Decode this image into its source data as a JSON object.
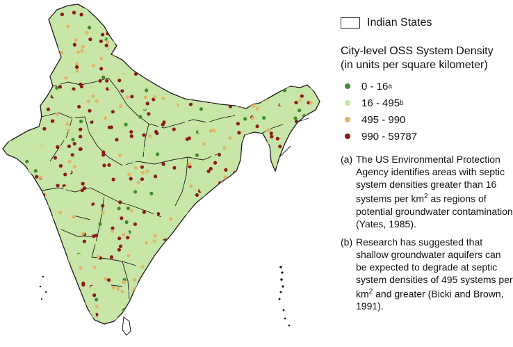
{
  "legend": {
    "states_label": "Indian States",
    "title_line1": "City-level OSS System Density",
    "title_line2": "(in units per square kilometer)",
    "categories": [
      {
        "label": "0 - 16",
        "sup": "a",
        "color": "#3d8a2a"
      },
      {
        "label": "16 - 495",
        "sup": "b",
        "color": "#c6e6a0"
      },
      {
        "label": "495 - 990",
        "sup": "",
        "color": "#e0b56a"
      },
      {
        "label": "990 - 59787",
        "sup": "",
        "color": "#8b1a1a"
      }
    ]
  },
  "notes": [
    {
      "tag": "(a)",
      "text_before": "The US Environmental Protection Agency identifies areas with septic system densities greater than 16 systems per km",
      "sup": "2",
      "text_after": " as regions of potential groundwater contamination (Yates, 1985)."
    },
    {
      "tag": "(b)",
      "text_before": "Research has suggested that shallow groundwater aquifers can be expected to degrade at septic system densities of 495 systems per km",
      "sup": "2",
      "text_after": " and greater (Bicki and Brown, 1991)."
    }
  ],
  "map": {
    "land_color": "#c8e6a8",
    "border_color": "#1a1a1a"
  }
}
